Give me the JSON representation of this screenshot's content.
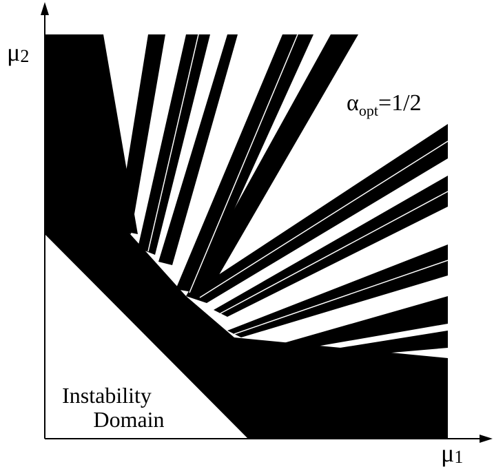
{
  "y_axis_label": {
    "symbol": "μ",
    "subscript": "2"
  },
  "x_axis_label": {
    "symbol": "μ",
    "subscript": "1"
  },
  "parameter_label": {
    "symbol": "α",
    "subscript": "opt",
    "text": "=1/2"
  },
  "region_label": [
    "Instability",
    "Domain"
  ]
}
